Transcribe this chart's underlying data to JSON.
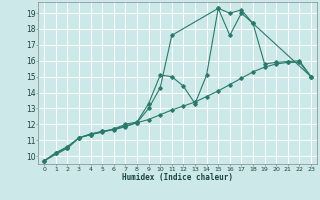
{
  "xlabel": "Humidex (Indice chaleur)",
  "bg_color": "#cce8e8",
  "grid_color": "#ffffff",
  "line_color": "#2a7a6a",
  "xlim": [
    -0.5,
    23.5
  ],
  "ylim": [
    9.5,
    19.7
  ],
  "xticks": [
    0,
    1,
    2,
    3,
    4,
    5,
    6,
    7,
    8,
    9,
    10,
    11,
    12,
    13,
    14,
    15,
    16,
    17,
    18,
    19,
    20,
    21,
    22,
    23
  ],
  "yticks": [
    10,
    11,
    12,
    13,
    14,
    15,
    16,
    17,
    18,
    19
  ],
  "series1_x": [
    0,
    1,
    2,
    3,
    4,
    5,
    6,
    7,
    8,
    9,
    10,
    11,
    12,
    13,
    14,
    15,
    16,
    17,
    18,
    19,
    20,
    21,
    22,
    23
  ],
  "series1_y": [
    9.7,
    10.2,
    10.6,
    11.15,
    11.4,
    11.55,
    11.65,
    11.85,
    12.1,
    12.3,
    12.6,
    12.9,
    13.15,
    13.4,
    13.75,
    14.1,
    14.5,
    14.9,
    15.3,
    15.6,
    15.8,
    15.9,
    15.9,
    15.0
  ],
  "series2_x": [
    0,
    1,
    2,
    3,
    4,
    5,
    6,
    7,
    8,
    9,
    10,
    11,
    12,
    13,
    14,
    15,
    16,
    17,
    18,
    19,
    20,
    21,
    22,
    23
  ],
  "series2_y": [
    9.7,
    10.2,
    10.5,
    11.15,
    11.35,
    11.55,
    11.7,
    12.0,
    12.15,
    13.3,
    15.1,
    15.0,
    14.4,
    13.3,
    15.1,
    19.3,
    17.6,
    19.0,
    18.35,
    15.8,
    15.9,
    15.95,
    16.0,
    15.0
  ],
  "series3_x": [
    0,
    2,
    3,
    4,
    5,
    6,
    7,
    8,
    9,
    10,
    11,
    15,
    16,
    17,
    18,
    23
  ],
  "series3_y": [
    9.7,
    10.5,
    11.15,
    11.35,
    11.5,
    11.7,
    11.9,
    12.1,
    13.0,
    14.3,
    17.6,
    19.3,
    19.0,
    19.2,
    18.35,
    15.0
  ]
}
